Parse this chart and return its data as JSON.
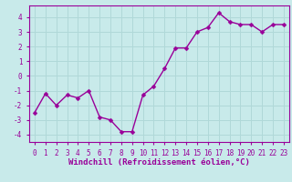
{
  "x": [
    0,
    1,
    2,
    3,
    4,
    5,
    6,
    7,
    8,
    9,
    10,
    11,
    12,
    13,
    14,
    15,
    16,
    17,
    18,
    19,
    20,
    21,
    22,
    23
  ],
  "y": [
    -2.5,
    -1.2,
    -2.0,
    -1.3,
    -1.5,
    -1.0,
    -2.8,
    -3.0,
    -3.8,
    -3.8,
    -1.3,
    -0.7,
    0.5,
    1.9,
    1.9,
    3.0,
    3.3,
    4.3,
    3.7,
    3.5,
    3.5,
    3.0,
    3.5,
    3.5
  ],
  "line_color": "#990099",
  "marker_color": "#990099",
  "bg_color": "#c8eaea",
  "grid_color": "#b0d8d8",
  "xlabel": "Windchill (Refroidissement éolien,°C)",
  "xlabel_color": "#990099",
  "xlim": [
    -0.5,
    23.5
  ],
  "ylim": [
    -4.5,
    4.8
  ],
  "yticks": [
    -4,
    -3,
    -2,
    -1,
    0,
    1,
    2,
    3,
    4
  ],
  "xticks": [
    0,
    1,
    2,
    3,
    4,
    5,
    6,
    7,
    8,
    9,
    10,
    11,
    12,
    13,
    14,
    15,
    16,
    17,
    18,
    19,
    20,
    21,
    22,
    23
  ],
  "tick_color": "#990099",
  "marker_size": 2.5,
  "line_width": 1.0,
  "tick_fontsize": 5.5,
  "xlabel_fontsize": 6.5
}
